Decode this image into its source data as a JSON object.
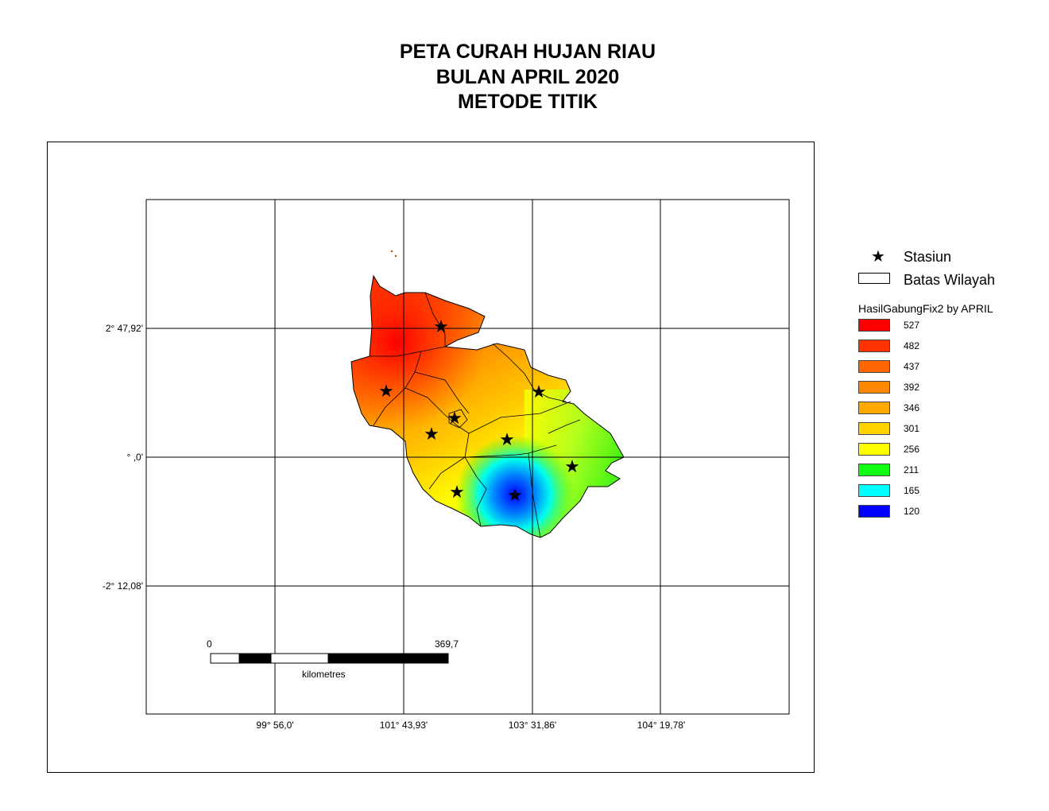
{
  "title": {
    "line1": "PETA CURAH HUJAN RIAU",
    "line2": "BULAN APRIL 2020",
    "line3": "METODE TITIK"
  },
  "grid_labels": {
    "lat": [
      "2° 47,92'",
      "° ,0'",
      "-2° 12,08'"
    ],
    "lon": [
      "99° 56,0'",
      "101° 43,93'",
      "103° 31,86'",
      "104° 19,78'"
    ]
  },
  "legend": {
    "station_symbol": "★",
    "station_label": "Stasiun",
    "boundary_label": "Batas Wilayah",
    "layer_title": "HasilGabungFix2 by APRIL",
    "classes": [
      {
        "label": "527",
        "color": "#ff0000"
      },
      {
        "label": "482",
        "color": "#ff3300"
      },
      {
        "label": "437",
        "color": "#ff6600"
      },
      {
        "label": "392",
        "color": "#ff8800"
      },
      {
        "label": "346",
        "color": "#ffaa00"
      },
      {
        "label": "301",
        "color": "#ffd200"
      },
      {
        "label": "256",
        "color": "#ffff00"
      },
      {
        "label": "211",
        "color": "#11ff11"
      },
      {
        "label": "165",
        "color": "#00ffff"
      },
      {
        "label": "120",
        "color": "#0000ff"
      }
    ]
  },
  "scalebar": {
    "start": "0",
    "end": "369,7",
    "unit": "kilometres"
  },
  "colors": {
    "high": "#ff1a00",
    "mid": "#ffaa00",
    "low": "#0000ff"
  }
}
